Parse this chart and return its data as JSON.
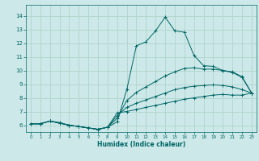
{
  "xlabel": "Humidex (Indice chaleur)",
  "ylabel": "",
  "bg_color": "#cde8e8",
  "grid_color": "#b0d4cc",
  "line_color": "#006666",
  "xlim": [
    -0.5,
    23.5
  ],
  "ylim": [
    5.5,
    14.8
  ],
  "xticks": [
    0,
    1,
    2,
    3,
    4,
    5,
    6,
    7,
    8,
    9,
    10,
    11,
    12,
    13,
    14,
    15,
    16,
    17,
    18,
    19,
    20,
    21,
    22,
    23
  ],
  "yticks": [
    6,
    7,
    8,
    9,
    10,
    11,
    12,
    13,
    14
  ],
  "curve1_x": [
    0,
    1,
    2,
    3,
    4,
    5,
    6,
    7,
    8,
    9,
    10,
    11,
    12,
    13,
    14,
    15,
    16,
    17,
    18,
    19,
    20,
    21,
    22,
    23
  ],
  "curve1_y": [
    6.1,
    6.1,
    6.3,
    6.2,
    6.0,
    5.9,
    5.8,
    5.7,
    5.85,
    6.25,
    8.6,
    11.8,
    12.1,
    12.9,
    13.9,
    12.9,
    12.8,
    11.1,
    10.35,
    10.3,
    10.0,
    9.9,
    9.55,
    8.35
  ],
  "curve2_x": [
    0,
    1,
    2,
    3,
    4,
    5,
    6,
    7,
    8,
    9,
    10,
    11,
    12,
    13,
    14,
    15,
    16,
    17,
    18,
    19,
    20,
    21,
    22,
    23
  ],
  "curve2_y": [
    6.1,
    6.1,
    6.3,
    6.15,
    6.0,
    5.9,
    5.8,
    5.7,
    5.85,
    6.5,
    7.8,
    8.4,
    8.8,
    9.2,
    9.6,
    9.9,
    10.15,
    10.2,
    10.1,
    10.1,
    10.0,
    9.85,
    9.5,
    8.35
  ],
  "curve3_x": [
    0,
    1,
    2,
    3,
    4,
    5,
    6,
    7,
    8,
    9,
    10,
    11,
    12,
    13,
    14,
    15,
    16,
    17,
    18,
    19,
    20,
    21,
    22,
    23
  ],
  "curve3_y": [
    6.1,
    6.1,
    6.3,
    6.15,
    6.0,
    5.9,
    5.8,
    5.7,
    5.85,
    6.7,
    7.3,
    7.6,
    7.85,
    8.1,
    8.35,
    8.6,
    8.75,
    8.85,
    8.9,
    8.95,
    8.9,
    8.8,
    8.6,
    8.35
  ],
  "curve4_x": [
    0,
    1,
    2,
    3,
    4,
    5,
    6,
    7,
    8,
    9,
    10,
    11,
    12,
    13,
    14,
    15,
    16,
    17,
    18,
    19,
    20,
    21,
    22,
    23
  ],
  "curve4_y": [
    6.1,
    6.1,
    6.3,
    6.15,
    6.0,
    5.9,
    5.8,
    5.7,
    5.85,
    6.9,
    7.0,
    7.15,
    7.3,
    7.45,
    7.6,
    7.75,
    7.9,
    8.0,
    8.1,
    8.2,
    8.25,
    8.2,
    8.2,
    8.35
  ]
}
